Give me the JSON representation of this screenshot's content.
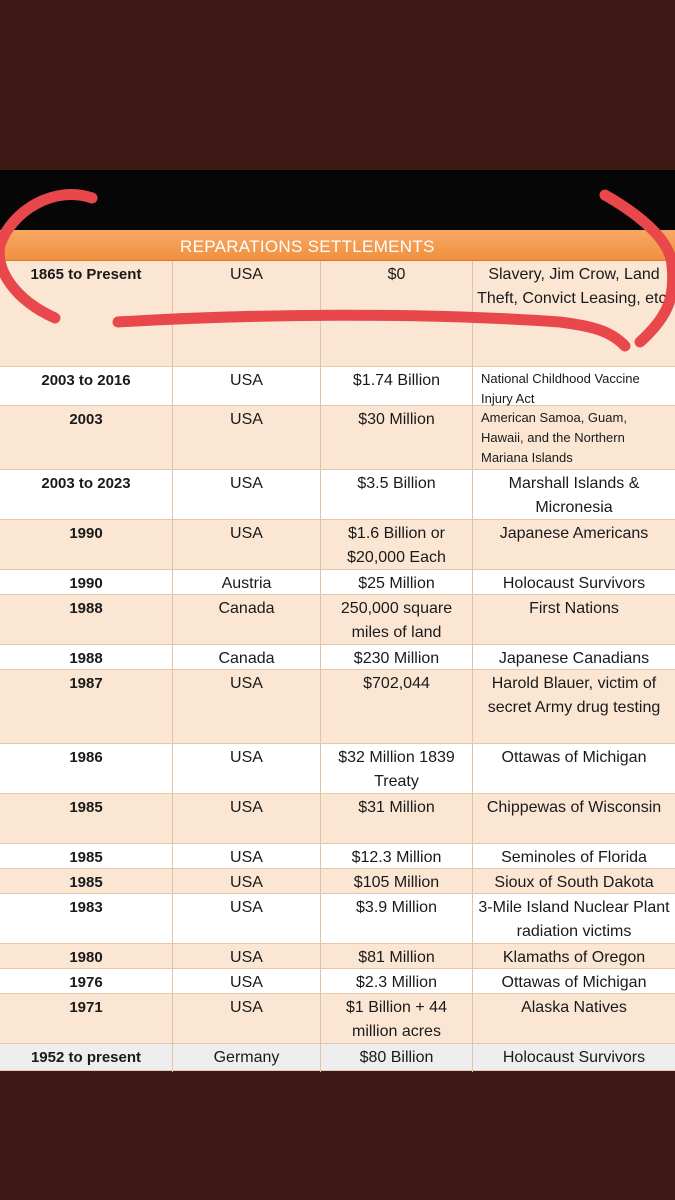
{
  "header": {
    "title": "REPARATIONS  SETTLEMENTS"
  },
  "rows": [
    {
      "date": "1865 to Present",
      "country": "USA",
      "amount": "$0",
      "recipient": "Slavery, Jim Crow, Land Theft, Convict Leasing, etc."
    },
    {
      "date": "2003 to 2016",
      "country": "USA",
      "amount": "$1.74 Billion",
      "recipient": "National Childhood Vaccine Injury Act"
    },
    {
      "date": "2003",
      "country": "USA",
      "amount": "$30 Million",
      "recipient": "American Samoa, Guam, Hawaii, and the Northern Mariana Islands"
    },
    {
      "date": "2003 to 2023",
      "country": "USA",
      "amount": "$3.5 Billion",
      "recipient": "Marshall Islands & Micronesia"
    },
    {
      "date": "1990",
      "country": "USA",
      "amount": "$1.6 Billion or $20,000 Each",
      "recipient": "Japanese Americans"
    },
    {
      "date": "1990",
      "country": "Austria",
      "amount": "$25 Million",
      "recipient": "Holocaust Survivors"
    },
    {
      "date": "1988",
      "country": "Canada",
      "amount": "250,000 square miles of land",
      "recipient": "First Nations"
    },
    {
      "date": "1988",
      "country": "Canada",
      "amount": "$230 Million",
      "recipient": "Japanese Canadians"
    },
    {
      "date": "1987",
      "country": "USA",
      "amount": "$702,044",
      "recipient": "Harold Blauer, victim of secret Army drug testing"
    },
    {
      "date": "1986",
      "country": "USA",
      "amount": "$32 Million 1839 Treaty",
      "recipient": "Ottawas of Michigan"
    },
    {
      "date": "1985",
      "country": "USA",
      "amount": "$31 Million",
      "recipient": "Chippewas of Wisconsin"
    },
    {
      "date": "1985",
      "country": "USA",
      "amount": "$12.3 Million",
      "recipient": "Seminoles of Florida"
    },
    {
      "date": "1985",
      "country": "USA",
      "amount": "$105 Million",
      "recipient": "Sioux of South Dakota"
    },
    {
      "date": "1983",
      "country": "USA",
      "amount": "$3.9 Million",
      "recipient": "3-Mile Island Nuclear Plant radiation victims"
    },
    {
      "date": "1980",
      "country": "USA",
      "amount": "$81 Million",
      "recipient": "Klamaths of Oregon"
    },
    {
      "date": "1976",
      "country": "USA",
      "amount": "$2.3 Million",
      "recipient": "Ottawas of Michigan"
    },
    {
      "date": "1971",
      "country": "USA",
      "amount": "$1 Billion + 44 million acres",
      "recipient": "Alaska Natives"
    },
    {
      "date": "1952 to present",
      "country": "Germany",
      "amount": "$80 Billion",
      "recipient": "Holocaust Survivors"
    }
  ],
  "annotation": {
    "color": "#e8484c",
    "icon": "red-marker-scribble-icon"
  }
}
